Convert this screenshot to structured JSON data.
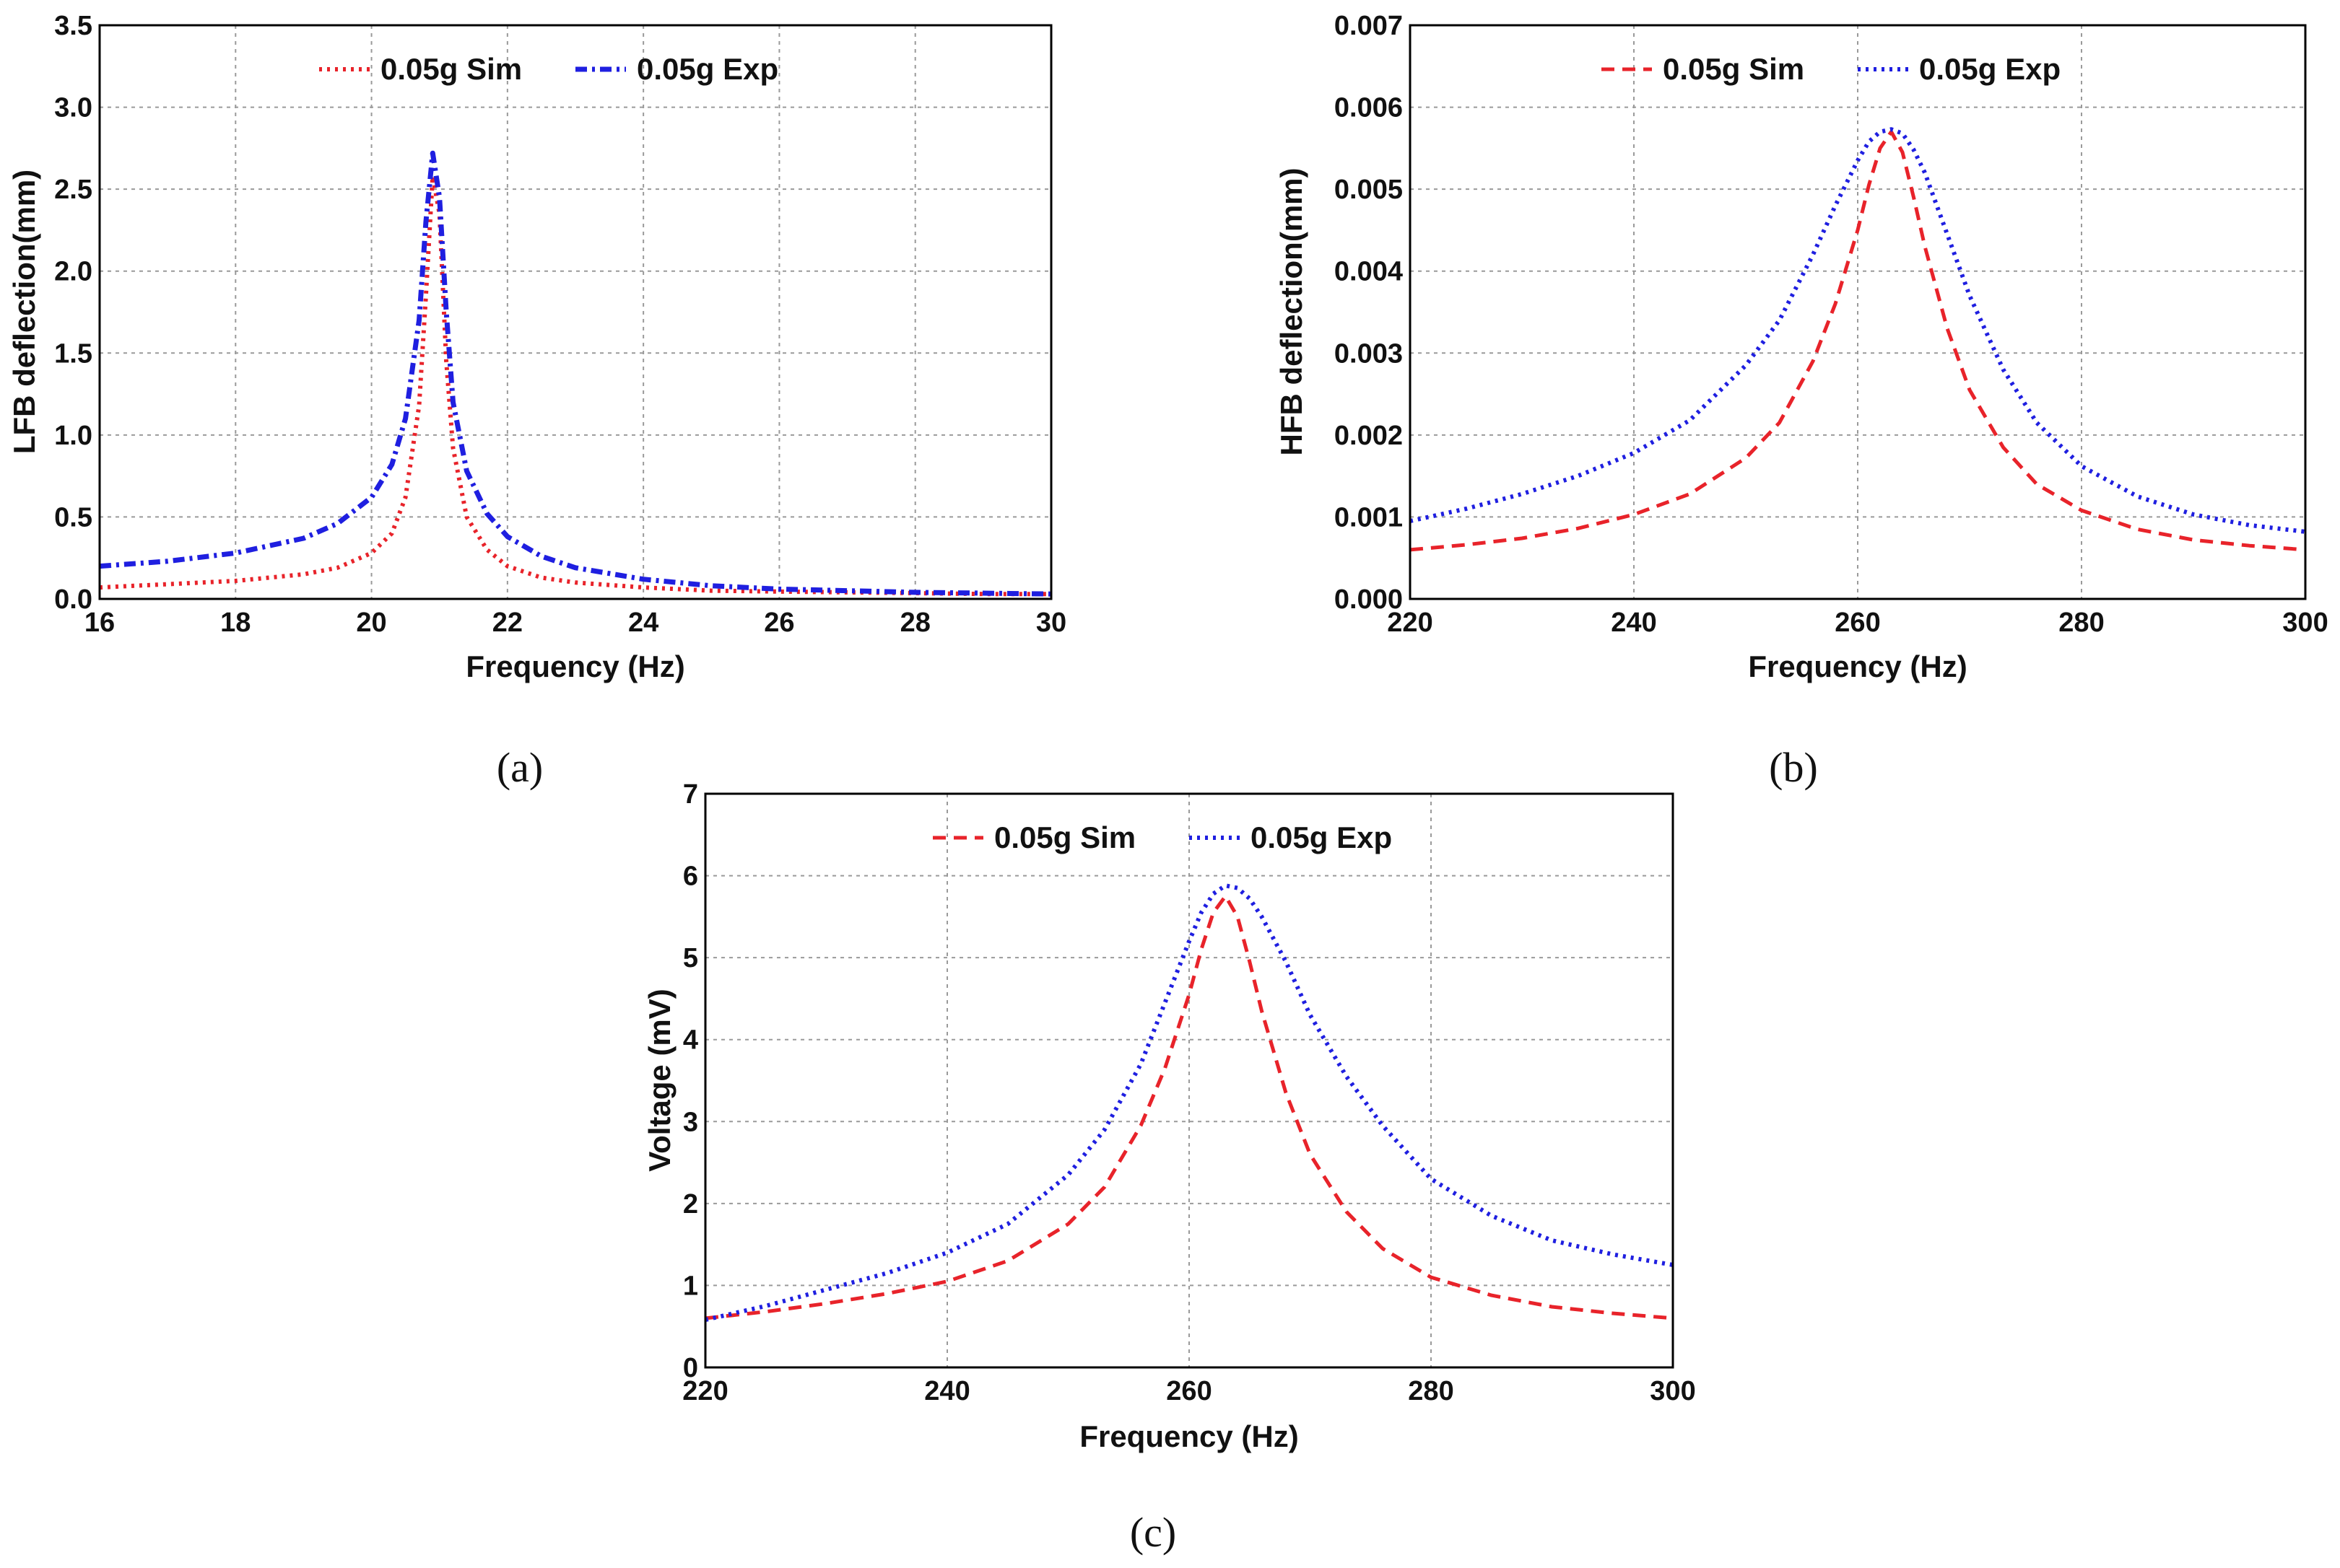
{
  "chart_data": [
    {
      "type": "line",
      "panel_label": "(a)",
      "xlabel": "Frequency (Hz)",
      "ylabel": "LFB deflection(mm)",
      "xlim": [
        16,
        30
      ],
      "ylim": [
        0.0,
        3.5
      ],
      "x_ticks": [
        "16",
        "18",
        "20",
        "22",
        "24",
        "26",
        "28",
        "30"
      ],
      "y_ticks": [
        "0.0",
        "0.5",
        "1.0",
        "1.5",
        "2.0",
        "2.5",
        "3.0",
        "3.5"
      ],
      "grid": true,
      "legend_position": "top-center",
      "series": [
        {
          "name": "0.05g Sim",
          "color": "#e8232a",
          "style": "dotted",
          "x": [
            16,
            17,
            18,
            19,
            19.5,
            20,
            20.3,
            20.5,
            20.7,
            20.8,
            20.9,
            21.0,
            21.1,
            21.2,
            21.4,
            21.7,
            22,
            22.5,
            23,
            24,
            25,
            26,
            27,
            28,
            29,
            30
          ],
          "y": [
            0.07,
            0.09,
            0.11,
            0.15,
            0.19,
            0.28,
            0.4,
            0.62,
            1.18,
            1.85,
            2.58,
            2.35,
            1.45,
            0.92,
            0.5,
            0.3,
            0.2,
            0.13,
            0.1,
            0.07,
            0.05,
            0.045,
            0.04,
            0.035,
            0.03,
            0.03
          ]
        },
        {
          "name": "0.05g Exp",
          "color": "#1f1fe0",
          "style": "dash-dot",
          "x": [
            16,
            17,
            18,
            19,
            19.5,
            20,
            20.3,
            20.5,
            20.7,
            20.8,
            20.9,
            21.0,
            21.1,
            21.2,
            21.4,
            21.7,
            22,
            22.5,
            23,
            24,
            25,
            26,
            27,
            28,
            29,
            30
          ],
          "y": [
            0.2,
            0.23,
            0.28,
            0.37,
            0.46,
            0.62,
            0.82,
            1.1,
            1.7,
            2.3,
            2.72,
            2.45,
            1.75,
            1.2,
            0.78,
            0.52,
            0.38,
            0.26,
            0.19,
            0.12,
            0.08,
            0.06,
            0.05,
            0.04,
            0.035,
            0.03
          ]
        }
      ]
    },
    {
      "type": "line",
      "panel_label": "(b)",
      "xlabel": "Frequency (Hz)",
      "ylabel": "HFB deflection(mm)",
      "xlim": [
        220,
        300
      ],
      "ylim": [
        0.0,
        0.007
      ],
      "x_ticks": [
        "220",
        "240",
        "260",
        "280",
        "300"
      ],
      "y_ticks": [
        "0.000",
        "0.001",
        "0.002",
        "0.003",
        "0.004",
        "0.005",
        "0.006",
        "0.007"
      ],
      "grid": true,
      "legend_position": "top-center",
      "series": [
        {
          "name": "0.05g Sim",
          "color": "#e8232a",
          "style": "dashed",
          "x": [
            220,
            225,
            230,
            235,
            240,
            245,
            250,
            253,
            256,
            258,
            260,
            261,
            262,
            263,
            264,
            265,
            266,
            268,
            270,
            273,
            276,
            280,
            285,
            290,
            295,
            300
          ],
          "y": [
            0.0006,
            0.00066,
            0.00074,
            0.00086,
            0.00103,
            0.00128,
            0.00172,
            0.00215,
            0.0029,
            0.0036,
            0.0045,
            0.00505,
            0.0055,
            0.0057,
            0.00545,
            0.0049,
            0.0043,
            0.0033,
            0.00255,
            0.00185,
            0.0014,
            0.00108,
            0.00085,
            0.00072,
            0.00065,
            0.0006
          ]
        },
        {
          "name": "0.05g Exp",
          "color": "#1f1fe0",
          "style": "dotted",
          "x": [
            220,
            225,
            230,
            235,
            240,
            245,
            250,
            253,
            256,
            258,
            260,
            261,
            262,
            263,
            264,
            265,
            266,
            268,
            270,
            273,
            276,
            280,
            285,
            290,
            295,
            300
          ],
          "y": [
            0.00095,
            0.0011,
            0.00128,
            0.0015,
            0.00178,
            0.00218,
            0.00285,
            0.0034,
            0.0042,
            0.0048,
            0.00535,
            0.00558,
            0.0057,
            0.00573,
            0.00568,
            0.00548,
            0.0052,
            0.00445,
            0.0037,
            0.0028,
            0.00215,
            0.00162,
            0.00125,
            0.00103,
            0.0009,
            0.00082
          ]
        }
      ]
    },
    {
      "type": "line",
      "panel_label": "(c)",
      "xlabel": "Frequency (Hz)",
      "ylabel": "Voltage (mV)",
      "xlim": [
        220,
        300
      ],
      "ylim": [
        0,
        7
      ],
      "x_ticks": [
        "220",
        "240",
        "260",
        "280",
        "300"
      ],
      "y_ticks": [
        "0",
        "1",
        "2",
        "3",
        "4",
        "5",
        "6",
        "7"
      ],
      "grid": true,
      "legend_position": "top-center",
      "series": [
        {
          "name": "0.05g Sim",
          "color": "#e8232a",
          "style": "dashed",
          "x": [
            220,
            225,
            230,
            235,
            240,
            245,
            250,
            253,
            256,
            258,
            260,
            261,
            262,
            263,
            264,
            265,
            266,
            268,
            270,
            273,
            276,
            280,
            285,
            290,
            295,
            300
          ],
          "y": [
            0.6,
            0.68,
            0.78,
            0.9,
            1.05,
            1.3,
            1.75,
            2.2,
            2.95,
            3.65,
            4.55,
            5.1,
            5.55,
            5.75,
            5.5,
            4.95,
            4.35,
            3.35,
            2.6,
            1.9,
            1.45,
            1.1,
            0.88,
            0.74,
            0.66,
            0.6
          ]
        },
        {
          "name": "0.05g Exp",
          "color": "#1f1fe0",
          "style": "dotted",
          "x": [
            220,
            225,
            230,
            235,
            240,
            245,
            250,
            253,
            256,
            258,
            260,
            261,
            262,
            263,
            264,
            265,
            266,
            268,
            270,
            273,
            276,
            280,
            285,
            290,
            295,
            300
          ],
          "y": [
            0.58,
            0.75,
            0.95,
            1.15,
            1.4,
            1.75,
            2.35,
            2.9,
            3.7,
            4.45,
            5.2,
            5.55,
            5.78,
            5.88,
            5.85,
            5.72,
            5.5,
            4.95,
            4.3,
            3.55,
            2.95,
            2.3,
            1.85,
            1.55,
            1.38,
            1.25
          ]
        }
      ]
    }
  ]
}
